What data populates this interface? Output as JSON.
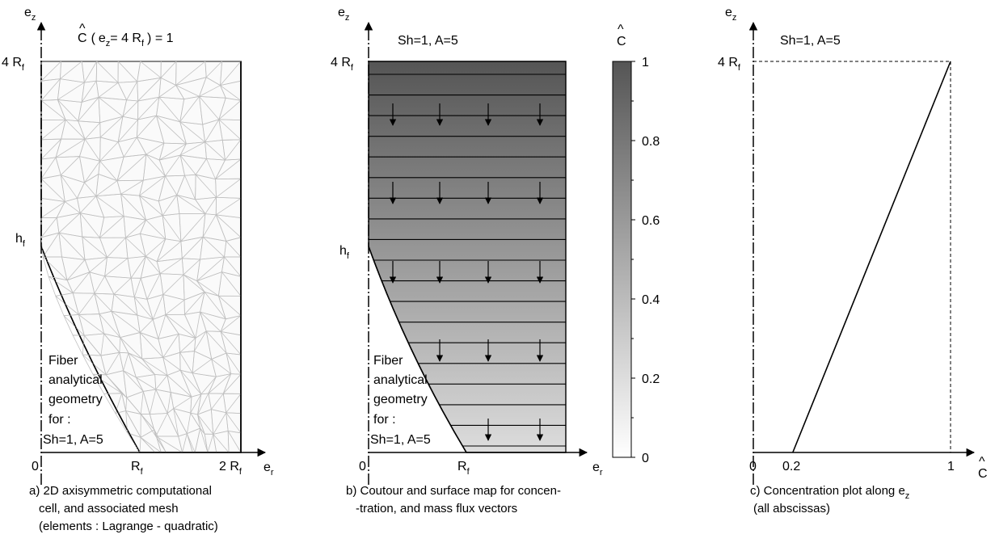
{
  "panel_a": {
    "axis_z": {
      "main": "e",
      "sub": "z"
    },
    "axis_r": {
      "main": "e",
      "sub": "r"
    },
    "bc_hat": "^",
    "bc_C": "C",
    "bc_paren_open": "(",
    "bc_ez_main": "e",
    "bc_ez_sub": "z",
    "bc_eq1": "= 4 R",
    "bc_eq1_sub": "f",
    "bc_end": ") = 1",
    "y_top": {
      "main": "4 R",
      "sub": "f"
    },
    "y_hf": {
      "main": "h",
      "sub": "f"
    },
    "x_zero": "0",
    "x_rf": {
      "main": "R",
      "sub": "f"
    },
    "x_2rf": {
      "main": "2 R",
      "sub": "f"
    },
    "fiber_text": [
      "Fiber",
      "analytical",
      "geometry",
      "for :",
      "Sh=1,  A=5"
    ],
    "caption": [
      "a) 2D axisymmetric computational",
      "cell,  and associated mesh",
      "(elements : Lagrange - quadratic)"
    ]
  },
  "panel_b": {
    "axis_z": {
      "main": "e",
      "sub": "z"
    },
    "axis_r": {
      "main": "e",
      "sub": "r"
    },
    "params": "Sh=1,  A=5",
    "y_top": {
      "main": "4 R",
      "sub": "f"
    },
    "y_hf": {
      "main": "h",
      "sub": "f"
    },
    "x_zero": "0",
    "x_rf": {
      "main": "R",
      "sub": "f"
    },
    "fiber_text": [
      "Fiber",
      "analytical",
      "geometry",
      "for :",
      "Sh=1,  A=5"
    ],
    "colorbar": {
      "hat": "^",
      "title": "C",
      "min": 0,
      "max": 1,
      "ticks": [
        "1",
        "0.8",
        "0.6",
        "0.4",
        "0.2",
        "0"
      ],
      "color_low": "#ffffff",
      "color_high": "#555555"
    },
    "caption": [
      "b) Coutour and surface map for concen-",
      "-tration, and mass flux vectors"
    ]
  },
  "panel_c": {
    "axis_z": {
      "main": "e",
      "sub": "z"
    },
    "axis_c_hat": "^",
    "axis_c": "C",
    "params": "Sh=1,  A=5",
    "y_top": {
      "main": "4 R",
      "sub": "f"
    },
    "x_ticks": [
      "0",
      "0.2",
      "1"
    ],
    "caption": [
      "c) Concentration plot along e",
      " (all abscissas)"
    ],
    "caption_sub": "z"
  },
  "chart_data": {
    "type": "line",
    "x": [
      0.2,
      1.0
    ],
    "y": [
      "0",
      "4 R_f"
    ],
    "xlabel": "Ĉ",
    "ylabel": "e_z",
    "xlim": [
      0,
      1
    ],
    "title": "Sh=1,  A=5"
  }
}
